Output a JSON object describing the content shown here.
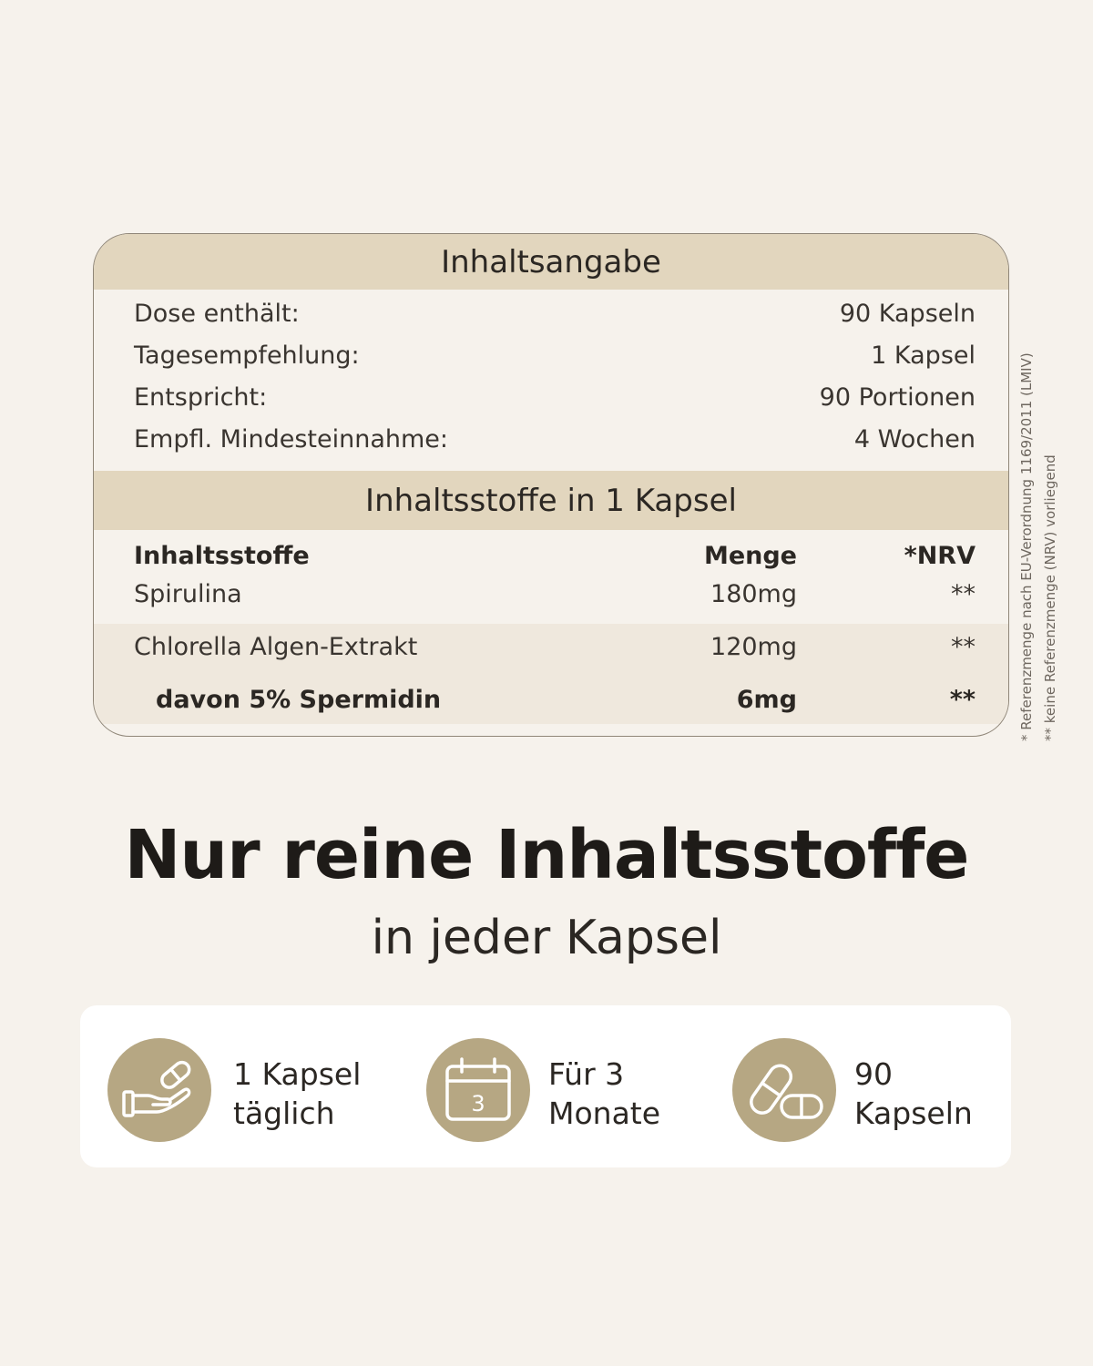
{
  "table": {
    "heading": "Inhaltsangabe",
    "info_rows": [
      {
        "label": "Dose enthält:",
        "value": "90 Kapseln"
      },
      {
        "label": "Tagesempfehlung:",
        "value": "1 Kapsel"
      },
      {
        "label": "Entspricht:",
        "value": "90 Portionen"
      },
      {
        "label": "Empfl. Mindesteinnahme:",
        "value": "4 Wochen"
      }
    ],
    "ingredients_heading": "Inhaltsstoffe in 1 Kapsel",
    "columns": {
      "name": "Inhaltsstoffe",
      "amount": "Menge",
      "nrv": "*NRV"
    },
    "ingredients": [
      {
        "name": "Spirulina",
        "amount": "180mg",
        "nrv": "**"
      },
      {
        "name": "Chlorella Algen-Extrakt",
        "amount": "120mg",
        "nrv": "**"
      },
      {
        "name": "davon 5% Spermidin",
        "amount": "6mg",
        "nrv": "**"
      }
    ]
  },
  "footnotes": {
    "nrv": "* Referenzmenge nach EU-Verordnung 1169/2011 (LMIV)",
    "no_nrv": "** keine Referenzmenge (NRV) vorliegend"
  },
  "headline": "Nur reine Inhaltsstoffe",
  "subline": "in jeder Kapsel",
  "features": [
    {
      "icon": "hand-capsule-icon",
      "line1": "1 Kapsel",
      "line2": "täglich"
    },
    {
      "icon": "calendar-icon",
      "calendar_number": "3",
      "line1": "Für 3",
      "line2": "Monate"
    },
    {
      "icon": "capsules-icon",
      "line1": "90",
      "line2": "Kapseln"
    }
  ],
  "colors": {
    "background": "#f6f2ec",
    "band": "#e2d6be",
    "icon_circle": "#b6a783",
    "text": "#2b2723"
  }
}
